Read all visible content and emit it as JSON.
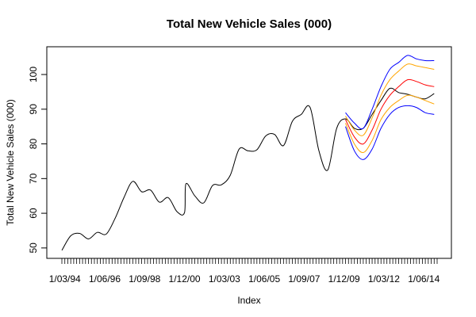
{
  "chart_data": {
    "type": "line",
    "title": "Total New Vehicle Sales (000)",
    "xlabel": "Index",
    "ylabel": "Total New Vehicle Sales (000)",
    "ylim": [
      47,
      108
    ],
    "y_ticks": [
      50,
      60,
      70,
      80,
      90,
      100
    ],
    "x_tick_labels": [
      "1/03/94",
      "1/06/96",
      "1/09/98",
      "1/12/00",
      "1/03/03",
      "1/06/05",
      "1/09/07",
      "1/12/09",
      "1/03/12",
      "1/06/14"
    ],
    "x_tick_label_dates": [
      "1994-03",
      "1996-06",
      "1998-09",
      "2000-12",
      "2003-03",
      "2005-06",
      "2007-09",
      "2009-12",
      "2012-03",
      "2014-06"
    ],
    "x_start": "1994-01",
    "x_end": "2015-03",
    "grid": false,
    "legend": "none",
    "series": [
      {
        "role": "actual",
        "color": "#000000",
        "x": [
          "1994-01",
          "1994-07",
          "1995-01",
          "1995-07",
          "1996-01",
          "1996-07",
          "1997-01",
          "1997-07",
          "1998-01",
          "1998-07",
          "1999-01",
          "1999-07",
          "2000-01",
          "2000-07",
          "2000-12",
          "2001-01",
          "2001-07",
          "2002-01",
          "2002-07",
          "2003-01",
          "2003-07",
          "2004-01",
          "2004-07",
          "2005-01",
          "2005-07",
          "2006-01",
          "2006-07",
          "2007-01",
          "2007-07",
          "2008-01",
          "2008-07",
          "2009-01",
          "2009-07",
          "2010-01",
          "2010-07",
          "2011-01",
          "2011-07",
          "2012-01",
          "2012-07",
          "2013-01",
          "2013-07",
          "2014-01",
          "2014-07",
          "2015-01"
        ],
        "y": [
          49.3,
          53.5,
          54.2,
          52.6,
          54.5,
          54.0,
          58.5,
          64.5,
          69.2,
          66.2,
          66.7,
          63.2,
          64.5,
          60.4,
          60.2,
          68.5,
          65.0,
          63.0,
          68.0,
          68.2,
          71.0,
          78.5,
          78.0,
          78.3,
          82.3,
          82.7,
          79.5,
          86.5,
          88.5,
          90.5,
          78.0,
          72.5,
          84.5,
          87.2,
          84.5,
          84.5,
          88.5,
          92.5,
          96.0,
          94.8,
          94.3,
          93.5,
          93.0,
          94.5
        ]
      },
      {
        "role": "forecast-upper-95",
        "color": "#0000ff",
        "x": [
          "2010-01",
          "2010-07",
          "2011-01",
          "2011-07",
          "2012-01",
          "2012-07",
          "2013-01",
          "2013-07",
          "2014-01",
          "2014-07",
          "2015-01"
        ],
        "y": [
          89.0,
          86.0,
          84.5,
          90.0,
          96.5,
          101.5,
          103.5,
          105.5,
          104.5,
          104.0,
          104.0
        ]
      },
      {
        "role": "forecast-upper-80",
        "color": "#ffa500",
        "x": [
          "2010-01",
          "2010-07",
          "2011-01",
          "2011-07",
          "2012-01",
          "2012-07",
          "2013-01",
          "2013-07",
          "2014-01",
          "2014-07",
          "2015-01"
        ],
        "y": [
          88.0,
          84.0,
          82.5,
          87.5,
          94.0,
          98.5,
          101.0,
          103.0,
          102.5,
          102.0,
          101.5
        ]
      },
      {
        "role": "forecast-mean",
        "color": "#ff0000",
        "x": [
          "2010-01",
          "2010-07",
          "2011-01",
          "2011-07",
          "2012-01",
          "2012-07",
          "2013-01",
          "2013-07",
          "2014-01",
          "2014-07",
          "2015-01"
        ],
        "y": [
          87.0,
          82.0,
          80.0,
          84.0,
          90.0,
          94.0,
          96.5,
          98.5,
          98.0,
          97.0,
          96.5
        ]
      },
      {
        "role": "forecast-lower-80",
        "color": "#ffa500",
        "x": [
          "2010-01",
          "2010-07",
          "2011-01",
          "2011-07",
          "2012-01",
          "2012-07",
          "2013-01",
          "2013-07",
          "2014-01",
          "2014-07",
          "2015-01"
        ],
        "y": [
          86.0,
          80.0,
          77.5,
          81.0,
          87.0,
          90.5,
          92.5,
          94.0,
          93.5,
          92.5,
          91.5
        ]
      },
      {
        "role": "forecast-lower-95",
        "color": "#0000ff",
        "x": [
          "2010-01",
          "2010-07",
          "2011-01",
          "2011-07",
          "2012-01",
          "2012-07",
          "2013-01",
          "2013-07",
          "2014-01",
          "2014-07",
          "2015-01"
        ],
        "y": [
          85.0,
          78.0,
          75.5,
          78.5,
          84.5,
          88.5,
          90.5,
          91.0,
          90.5,
          89.0,
          88.5
        ]
      }
    ]
  }
}
